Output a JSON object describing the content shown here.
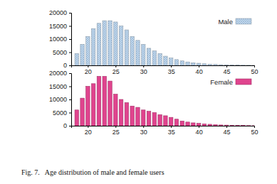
{
  "caption": "Fig. 7.   Age distribution of male and female users",
  "chart_data": [
    {
      "type": "bar",
      "x": [
        18,
        19,
        20,
        21,
        22,
        23,
        24,
        25,
        26,
        27,
        28,
        29,
        30,
        31,
        32,
        33,
        34,
        35,
        36,
        37,
        38,
        39,
        40,
        41,
        42,
        43,
        44,
        45,
        46,
        47,
        48,
        49,
        50
      ],
      "series": [
        {
          "name": "Male",
          "color": "#c9dcee",
          "values": [
            4500,
            8000,
            11000,
            14000,
            16000,
            17000,
            17000,
            16500,
            15000,
            13500,
            11000,
            9500,
            8000,
            6500,
            5500,
            4500,
            3500,
            2800,
            2200,
            1700,
            1300,
            1000,
            800,
            600,
            450,
            350,
            250,
            200,
            150,
            100,
            80,
            60,
            40
          ]
        }
      ],
      "xlim": [
        17,
        50
      ],
      "xticks": [
        20,
        25,
        30,
        35,
        40,
        45,
        50
      ],
      "ylim": [
        0,
        20000
      ],
      "yticks": [
        0,
        5000,
        10000,
        15000,
        20000
      ],
      "legend": "upper right"
    },
    {
      "type": "bar",
      "x": [
        18,
        19,
        20,
        21,
        22,
        23,
        24,
        25,
        26,
        27,
        28,
        29,
        30,
        31,
        32,
        33,
        34,
        35,
        36,
        37,
        38,
        39,
        40,
        41,
        42,
        43,
        44,
        45,
        46,
        47,
        48,
        49,
        50
      ],
      "series": [
        {
          "name": "Female",
          "color": "#e0448e",
          "values": [
            6000,
            10500,
            15000,
            16000,
            18800,
            18800,
            17000,
            12000,
            10000,
            8800,
            7500,
            7000,
            6000,
            5500,
            5000,
            4200,
            3800,
            3200,
            2500,
            1800,
            1400,
            1100,
            900,
            700,
            550,
            400,
            300,
            250,
            180,
            120,
            90,
            70,
            50
          ]
        }
      ],
      "xlim": [
        17,
        50
      ],
      "xticks": [
        20,
        25,
        30,
        35,
        40,
        45,
        50
      ],
      "ylim": [
        0,
        20000
      ],
      "yticks": [
        0,
        5000,
        10000,
        15000,
        20000
      ],
      "legend": "upper right"
    }
  ]
}
